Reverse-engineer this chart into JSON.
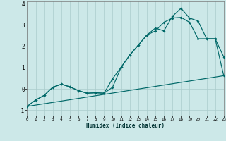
{
  "xlabel": "Humidex (Indice chaleur)",
  "bg_color": "#cce8e8",
  "grid_color": "#aacccc",
  "line_color": "#006868",
  "xlim": [
    0,
    23
  ],
  "ylim": [
    -1.25,
    4.1
  ],
  "xticks": [
    0,
    1,
    2,
    3,
    4,
    5,
    6,
    7,
    8,
    9,
    10,
    11,
    12,
    13,
    14,
    15,
    16,
    17,
    18,
    19,
    20,
    21,
    22,
    23
  ],
  "yticks": [
    -1,
    0,
    1,
    2,
    3,
    4
  ],
  "line_trend_x": [
    0,
    23
  ],
  "line_trend_y": [
    -0.82,
    0.62
  ],
  "line_jagged1_x": [
    0,
    1,
    2,
    3,
    4,
    5,
    6,
    7,
    8,
    9,
    10,
    11,
    12,
    13,
    14,
    15,
    16,
    17,
    18,
    19,
    20,
    21,
    22,
    23
  ],
  "line_jagged1_y": [
    -0.82,
    -0.52,
    -0.3,
    0.08,
    0.22,
    0.1,
    -0.08,
    -0.2,
    -0.18,
    -0.2,
    0.48,
    1.02,
    1.58,
    2.05,
    2.52,
    2.72,
    3.12,
    3.32,
    3.35,
    3.12,
    2.35,
    2.35,
    2.35,
    0.62
  ],
  "line_jagged2_x": [
    0,
    1,
    2,
    3,
    4,
    5,
    6,
    7,
    8,
    9,
    10,
    11,
    12,
    13,
    14,
    15,
    16,
    17,
    18,
    19,
    20,
    21,
    22,
    23
  ],
  "line_jagged2_y": [
    -0.82,
    -0.52,
    -0.3,
    0.08,
    0.22,
    0.1,
    -0.08,
    -0.2,
    -0.18,
    -0.2,
    0.08,
    1.02,
    1.58,
    2.05,
    2.52,
    2.85,
    2.72,
    3.4,
    3.78,
    3.32,
    3.18,
    2.35,
    2.35,
    1.5
  ]
}
